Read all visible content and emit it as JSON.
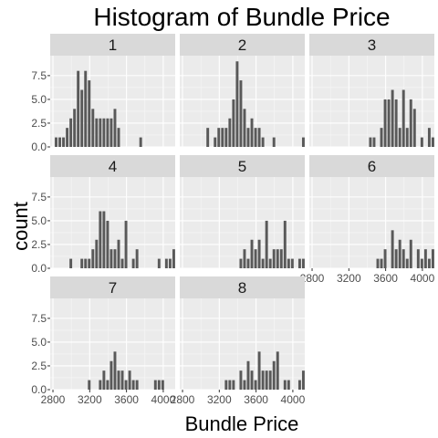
{
  "chart_data": {
    "type": "bar",
    "title": "Histogram of Bundle Price",
    "xlabel": "Bundle Price",
    "ylabel": "count",
    "xlim": [
      2770,
      4130
    ],
    "ylim": [
      0,
      9.6
    ],
    "x_ticks": [
      2800,
      3200,
      3600,
      4000
    ],
    "x_tick_labels": [
      "2800",
      "3200",
      "3600",
      "4000"
    ],
    "y_ticks": [
      0,
      2.5,
      5,
      7.5
    ],
    "y_tick_labels": [
      "0.0",
      "2.5",
      "5.0",
      "7.5"
    ],
    "grid": true,
    "bar_color": "#595959",
    "panel_bg": "#ebebeb",
    "strip_bg": "#d9d9d9",
    "bin_start": 2820,
    "bin_width": 40,
    "facets": [
      {
        "label": "1",
        "counts": [
          1,
          1,
          1,
          2,
          3,
          4,
          8,
          6,
          8,
          7,
          4,
          3,
          3,
          3,
          3,
          3,
          4,
          2,
          0,
          0,
          0,
          0,
          0,
          1,
          0,
          0,
          0,
          0,
          0,
          0,
          0,
          0,
          0
        ]
      },
      {
        "label": "2",
        "counts": [
          0,
          0,
          0,
          0,
          0,
          0,
          2,
          0,
          1,
          2,
          2,
          2,
          3,
          5,
          9,
          7,
          4,
          2,
          3,
          2,
          2,
          1,
          0,
          0,
          1,
          0,
          0,
          0,
          0,
          0,
          0,
          0,
          1
        ]
      },
      {
        "label": "3",
        "counts": [
          0,
          0,
          0,
          0,
          0,
          0,
          0,
          0,
          0,
          0,
          0,
          0,
          0,
          0,
          0,
          1,
          1,
          0,
          2,
          5,
          5,
          6,
          5,
          2,
          6,
          2,
          5,
          4,
          0,
          1,
          0,
          2,
          1
        ]
      },
      {
        "label": "4",
        "counts": [
          0,
          0,
          0,
          0,
          1,
          0,
          0,
          1,
          1,
          1,
          2,
          3,
          6,
          6,
          5,
          2,
          2,
          3,
          1,
          5,
          0,
          1,
          2,
          0,
          0,
          0,
          0,
          0,
          1,
          0,
          1,
          1,
          2
        ]
      },
      {
        "label": "5",
        "counts": [
          0,
          0,
          0,
          0,
          0,
          0,
          0,
          0,
          0,
          0,
          0,
          0,
          0,
          0,
          0,
          1,
          2,
          1,
          3,
          2,
          3,
          1,
          5,
          1,
          2,
          2,
          2,
          5,
          1,
          1,
          0,
          1,
          1
        ]
      },
      {
        "label": "6",
        "counts": [
          0,
          0,
          0,
          0,
          0,
          0,
          0,
          0,
          0,
          0,
          0,
          0,
          0,
          0,
          0,
          0,
          0,
          1,
          1,
          2,
          0,
          4,
          2,
          3,
          2,
          1,
          3,
          0,
          2,
          1,
          2,
          1,
          2
        ]
      },
      {
        "label": "7",
        "counts": [
          0,
          0,
          0,
          0,
          0,
          0,
          0,
          0,
          0,
          1,
          0,
          0,
          1,
          2,
          1,
          3,
          4,
          2,
          2,
          1,
          2,
          1,
          1,
          0,
          0,
          0,
          0,
          1,
          1,
          1,
          0,
          0,
          0
        ]
      },
      {
        "label": "8",
        "counts": [
          0,
          0,
          0,
          0,
          0,
          0,
          0,
          0,
          0,
          0,
          0,
          1,
          1,
          1,
          0,
          2,
          1,
          3,
          2,
          1,
          4,
          2,
          2,
          2,
          3,
          4,
          0,
          1,
          1,
          0,
          0,
          1,
          2
        ]
      }
    ]
  }
}
